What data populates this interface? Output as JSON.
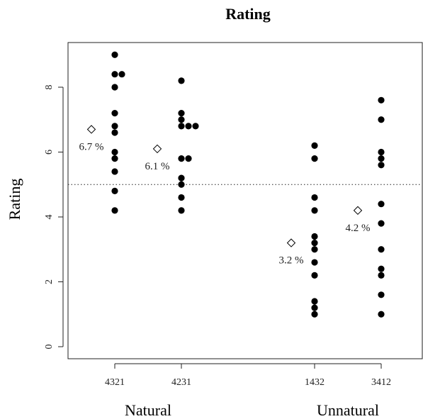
{
  "chart_data": {
    "type": "scatter",
    "title": "Rating",
    "xlabel": "",
    "ylabel": "Rating",
    "ylim": [
      -0.35,
      9.3
    ],
    "yticks": [
      0,
      2,
      4,
      6,
      8
    ],
    "reference_line": 5,
    "reference_style": "dotted",
    "grid": false,
    "groups": [
      {
        "label": "Natural",
        "categories": [
          "4321",
          "4231"
        ]
      },
      {
        "label": "Unnatural",
        "categories": [
          "1432",
          "3412"
        ]
      }
    ],
    "categories": [
      "4321",
      "4231",
      "1432",
      "3412"
    ],
    "series": [
      {
        "category": "4321",
        "points": [
          {
            "y": 9.0,
            "offset": 0
          },
          {
            "y": 8.4,
            "offset": 0
          },
          {
            "y": 8.4,
            "offset": 1
          },
          {
            "y": 8.0,
            "offset": 0
          },
          {
            "y": 7.2,
            "offset": 0
          },
          {
            "y": 6.8,
            "offset": 0
          },
          {
            "y": 6.6,
            "offset": 0
          },
          {
            "y": 6.0,
            "offset": 0
          },
          {
            "y": 5.8,
            "offset": 0
          },
          {
            "y": 5.4,
            "offset": 0
          },
          {
            "y": 4.8,
            "offset": 0
          },
          {
            "y": 4.2,
            "offset": 0
          }
        ]
      },
      {
        "category": "4231",
        "points": [
          {
            "y": 8.2,
            "offset": 0
          },
          {
            "y": 7.2,
            "offset": 0
          },
          {
            "y": 7.0,
            "offset": 0
          },
          {
            "y": 6.8,
            "offset": 0
          },
          {
            "y": 6.8,
            "offset": 1
          },
          {
            "y": 6.8,
            "offset": 2
          },
          {
            "y": 5.8,
            "offset": 0
          },
          {
            "y": 5.8,
            "offset": 1
          },
          {
            "y": 5.2,
            "offset": 0
          },
          {
            "y": 5.0,
            "offset": 0
          },
          {
            "y": 4.6,
            "offset": 0
          },
          {
            "y": 4.2,
            "offset": 0
          }
        ]
      },
      {
        "category": "1432",
        "points": [
          {
            "y": 6.2,
            "offset": 0
          },
          {
            "y": 5.8,
            "offset": 0
          },
          {
            "y": 4.6,
            "offset": 0
          },
          {
            "y": 4.2,
            "offset": 0
          },
          {
            "y": 3.4,
            "offset": 0
          },
          {
            "y": 3.2,
            "offset": 0
          },
          {
            "y": 3.0,
            "offset": 0
          },
          {
            "y": 2.6,
            "offset": 0
          },
          {
            "y": 2.2,
            "offset": 0
          },
          {
            "y": 1.4,
            "offset": 0
          },
          {
            "y": 1.2,
            "offset": 0
          },
          {
            "y": 1.0,
            "offset": 0
          }
        ]
      },
      {
        "category": "3412",
        "points": [
          {
            "y": 7.6,
            "offset": 0
          },
          {
            "y": 7.0,
            "offset": 0
          },
          {
            "y": 6.0,
            "offset": 0
          },
          {
            "y": 5.8,
            "offset": 0
          },
          {
            "y": 5.6,
            "offset": 0
          },
          {
            "y": 4.4,
            "offset": 0
          },
          {
            "y": 3.8,
            "offset": 0
          },
          {
            "y": 3.0,
            "offset": 0
          },
          {
            "y": 2.4,
            "offset": 0
          },
          {
            "y": 2.2,
            "offset": 0
          },
          {
            "y": 1.6,
            "offset": 0
          },
          {
            "y": 1.0,
            "offset": 0
          }
        ]
      }
    ],
    "annotations": [
      {
        "category": "4321",
        "y": 6.7,
        "label": "6.7 %"
      },
      {
        "category": "4231",
        "y": 6.1,
        "label": "6.1 %"
      },
      {
        "category": "1432",
        "y": 3.2,
        "label": "3.2 %"
      },
      {
        "category": "3412",
        "y": 4.2,
        "label": "4.2 %"
      }
    ],
    "marker_colors": {
      "points": "#000000",
      "annotation_marker": "#ffffff",
      "annotation_stroke": "#000000"
    }
  }
}
